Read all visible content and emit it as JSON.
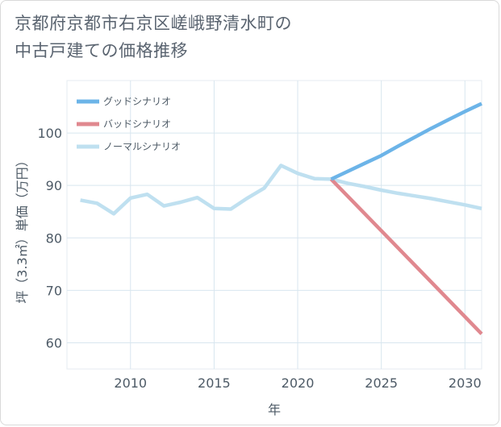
{
  "title": {
    "line1": "京都府京都市右京区嵯峨野清水町の",
    "line2": "中古戸建ての価格推移"
  },
  "chart_data": {
    "type": "line",
    "xlabel": "年",
    "ylabel": "坪（3.3㎡）単価（万円）",
    "xlim": [
      2006.2,
      2031
    ],
    "ylim": [
      55,
      110
    ],
    "x_ticks": [
      2010,
      2015,
      2020,
      2025,
      2030
    ],
    "y_ticks": [
      60,
      70,
      80,
      90,
      100
    ],
    "grid": true,
    "legend_position": "top-left",
    "series": [
      {
        "name": "グッドシナリオ",
        "color": "#6cb4e8",
        "x": [
          2022,
          2023,
          2024,
          2025,
          2026,
          2027,
          2028,
          2029,
          2030,
          2031
        ],
        "y": [
          91.2,
          92.7,
          94.2,
          95.7,
          97.5,
          99.2,
          100.9,
          102.5,
          104.1,
          105.6
        ]
      },
      {
        "name": "バッドシナリオ",
        "color": "#e0888f",
        "x": [
          2022,
          2031
        ],
        "y": [
          91.2,
          61.7
        ]
      },
      {
        "name": "ノーマルシナリオ",
        "color": "#bfe0f0",
        "x": [
          2007,
          2008,
          2009,
          2010,
          2011,
          2012,
          2013,
          2014,
          2015,
          2016,
          2017,
          2018,
          2019,
          2020,
          2021,
          2022,
          2023,
          2024,
          2025,
          2026,
          2027,
          2028,
          2029,
          2030,
          2031
        ],
        "y": [
          87.2,
          86.6,
          84.6,
          87.6,
          88.3,
          86.1,
          86.8,
          87.7,
          85.6,
          85.5,
          87.6,
          89.5,
          93.8,
          92.3,
          91.3,
          91.2,
          90.4,
          89.8,
          89.1,
          88.5,
          88.0,
          87.5,
          86.9,
          86.3,
          85.6
        ]
      }
    ]
  }
}
